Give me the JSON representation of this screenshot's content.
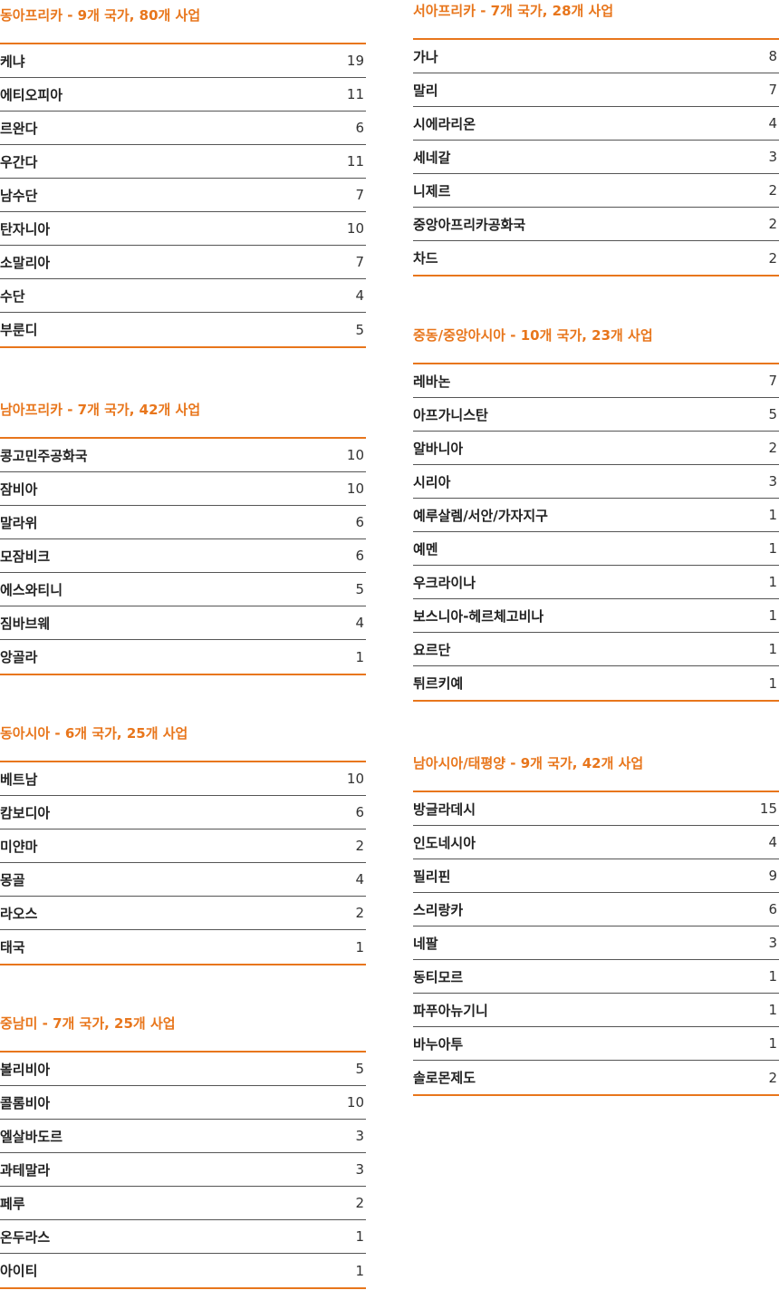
{
  "accent_color": "#e8761c",
  "left_column": [
    {
      "title": "동아프리카 - 9개 국가, 80개 사업",
      "rows": [
        {
          "name": "케냐",
          "count": "19"
        },
        {
          "name": "에티오피아",
          "count": "11"
        },
        {
          "name": "르완다",
          "count": "6"
        },
        {
          "name": "우간다",
          "count": "11"
        },
        {
          "name": "남수단",
          "count": "7"
        },
        {
          "name": "탄자니아",
          "count": "10"
        },
        {
          "name": "소말리아",
          "count": "7"
        },
        {
          "name": "수단",
          "count": "4"
        },
        {
          "name": "부룬디",
          "count": "5"
        }
      ]
    },
    {
      "title": "남아프리카 - 7개 국가, 42개 사업",
      "rows": [
        {
          "name": "콩고민주공화국",
          "count": "10"
        },
        {
          "name": "잠비아",
          "count": "10"
        },
        {
          "name": "말라위",
          "count": "6"
        },
        {
          "name": "모잠비크",
          "count": "6"
        },
        {
          "name": "에스와티니",
          "count": "5"
        },
        {
          "name": "짐바브웨",
          "count": "4"
        },
        {
          "name": "앙골라",
          "count": "1"
        }
      ]
    },
    {
      "title": "동아시아 - 6개 국가, 25개 사업",
      "rows": [
        {
          "name": "베트남",
          "count": "10"
        },
        {
          "name": "캄보디아",
          "count": "6"
        },
        {
          "name": "미얀마",
          "count": "2"
        },
        {
          "name": "몽골",
          "count": "4"
        },
        {
          "name": "라오스",
          "count": "2"
        },
        {
          "name": "태국",
          "count": "1"
        }
      ]
    },
    {
      "title": "중남미 - 7개 국가, 25개 사업",
      "rows": [
        {
          "name": "볼리비아",
          "count": "5"
        },
        {
          "name": "콜롬비아",
          "count": "10"
        },
        {
          "name": "엘살바도르",
          "count": "3"
        },
        {
          "name": "과테말라",
          "count": "3"
        },
        {
          "name": "페루",
          "count": "2"
        },
        {
          "name": "온두라스",
          "count": "1"
        },
        {
          "name": "아이티",
          "count": "1"
        }
      ]
    }
  ],
  "right_column": [
    {
      "title": "서아프리카 - 7개 국가, 28개 사업",
      "rows": [
        {
          "name": "가나",
          "count": "8"
        },
        {
          "name": "말리",
          "count": "7"
        },
        {
          "name": "시에라리온",
          "count": "4"
        },
        {
          "name": "세네갈",
          "count": "3"
        },
        {
          "name": "니제르",
          "count": "2"
        },
        {
          "name": "중앙아프리카공화국",
          "count": "2"
        },
        {
          "name": "차드",
          "count": "2"
        }
      ]
    },
    {
      "title": "중동/중앙아시아 - 10개 국가, 23개 사업",
      "rows": [
        {
          "name": "레바논",
          "count": "7"
        },
        {
          "name": "아프가니스탄",
          "count": "5"
        },
        {
          "name": "알바니아",
          "count": "2"
        },
        {
          "name": "시리아",
          "count": "3"
        },
        {
          "name": "예루살렘/서안/가자지구",
          "count": "1"
        },
        {
          "name": "예멘",
          "count": "1"
        },
        {
          "name": "우크라이나",
          "count": "1"
        },
        {
          "name": "보스니아-헤르체고비나",
          "count": "1"
        },
        {
          "name": "요르단",
          "count": "1"
        },
        {
          "name": "튀르키예",
          "count": "1"
        }
      ]
    },
    {
      "title": "남아시아/태평양 - 9개 국가, 42개 사업",
      "rows": [
        {
          "name": "방글라데시",
          "count": "15"
        },
        {
          "name": "인도네시아",
          "count": "4"
        },
        {
          "name": "필리핀",
          "count": "9"
        },
        {
          "name": "스리랑카",
          "count": "6"
        },
        {
          "name": "네팔",
          "count": "3"
        },
        {
          "name": "동티모르",
          "count": "1"
        },
        {
          "name": "파푸아뉴기니",
          "count": "1"
        },
        {
          "name": "바누아투",
          "count": "1"
        },
        {
          "name": "솔로몬제도",
          "count": "2"
        }
      ]
    }
  ]
}
